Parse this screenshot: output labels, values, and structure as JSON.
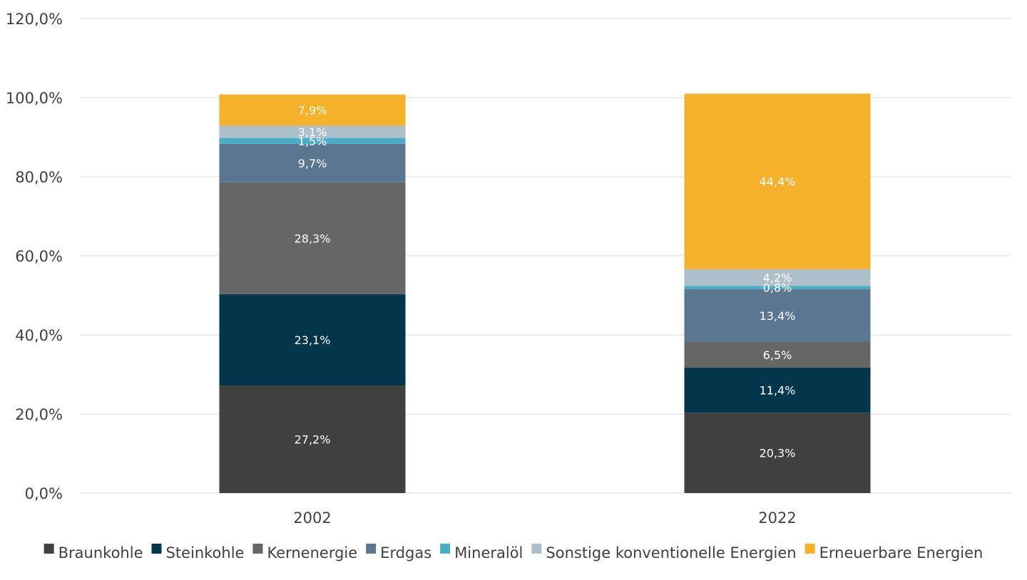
{
  "chart_data": {
    "type": "bar",
    "stacked": true,
    "categories": [
      "2002",
      "2022"
    ],
    "series": [
      {
        "name": "Braunkohle",
        "color": "#404040",
        "values": [
          27.2,
          20.3
        ],
        "labels": [
          "27,2%",
          "20,3%"
        ]
      },
      {
        "name": "Steinkohle",
        "color": "#03364B",
        "values": [
          23.1,
          11.4
        ],
        "labels": [
          "23,1%",
          "11,4%"
        ]
      },
      {
        "name": "Kernenergie",
        "color": "#666666",
        "values": [
          28.3,
          6.5
        ],
        "labels": [
          "28,3%",
          "6,5%"
        ]
      },
      {
        "name": "Erdgas",
        "color": "#5A7691",
        "values": [
          9.7,
          13.4
        ],
        "labels": [
          "9,7%",
          "13,4%"
        ]
      },
      {
        "name": "Mineralöl",
        "color": "#4BACC6",
        "values": [
          1.5,
          0.8
        ],
        "labels": [
          "1,5%",
          "0,8%"
        ]
      },
      {
        "name": "Sonstige konventionelle Energien",
        "color": "#ADBFC9",
        "values": [
          3.1,
          4.2
        ],
        "labels": [
          "3,1%",
          "4,2%"
        ]
      },
      {
        "name": "Erneuerbare Energien",
        "color": "#F6B12A",
        "values": [
          7.9,
          44.4
        ],
        "labels": [
          "7,9%",
          "44,4%"
        ]
      }
    ],
    "ylim": [
      0,
      120
    ],
    "yticks": [
      0,
      20,
      40,
      60,
      80,
      100,
      120
    ],
    "ytick_labels": [
      "0,0%",
      "20,0%",
      "40,0%",
      "60,0%",
      "80,0%",
      "100,0%",
      "120,0%"
    ],
    "grid": true,
    "legend_position": "bottom",
    "title": "",
    "xlabel": "",
    "ylabel": ""
  }
}
